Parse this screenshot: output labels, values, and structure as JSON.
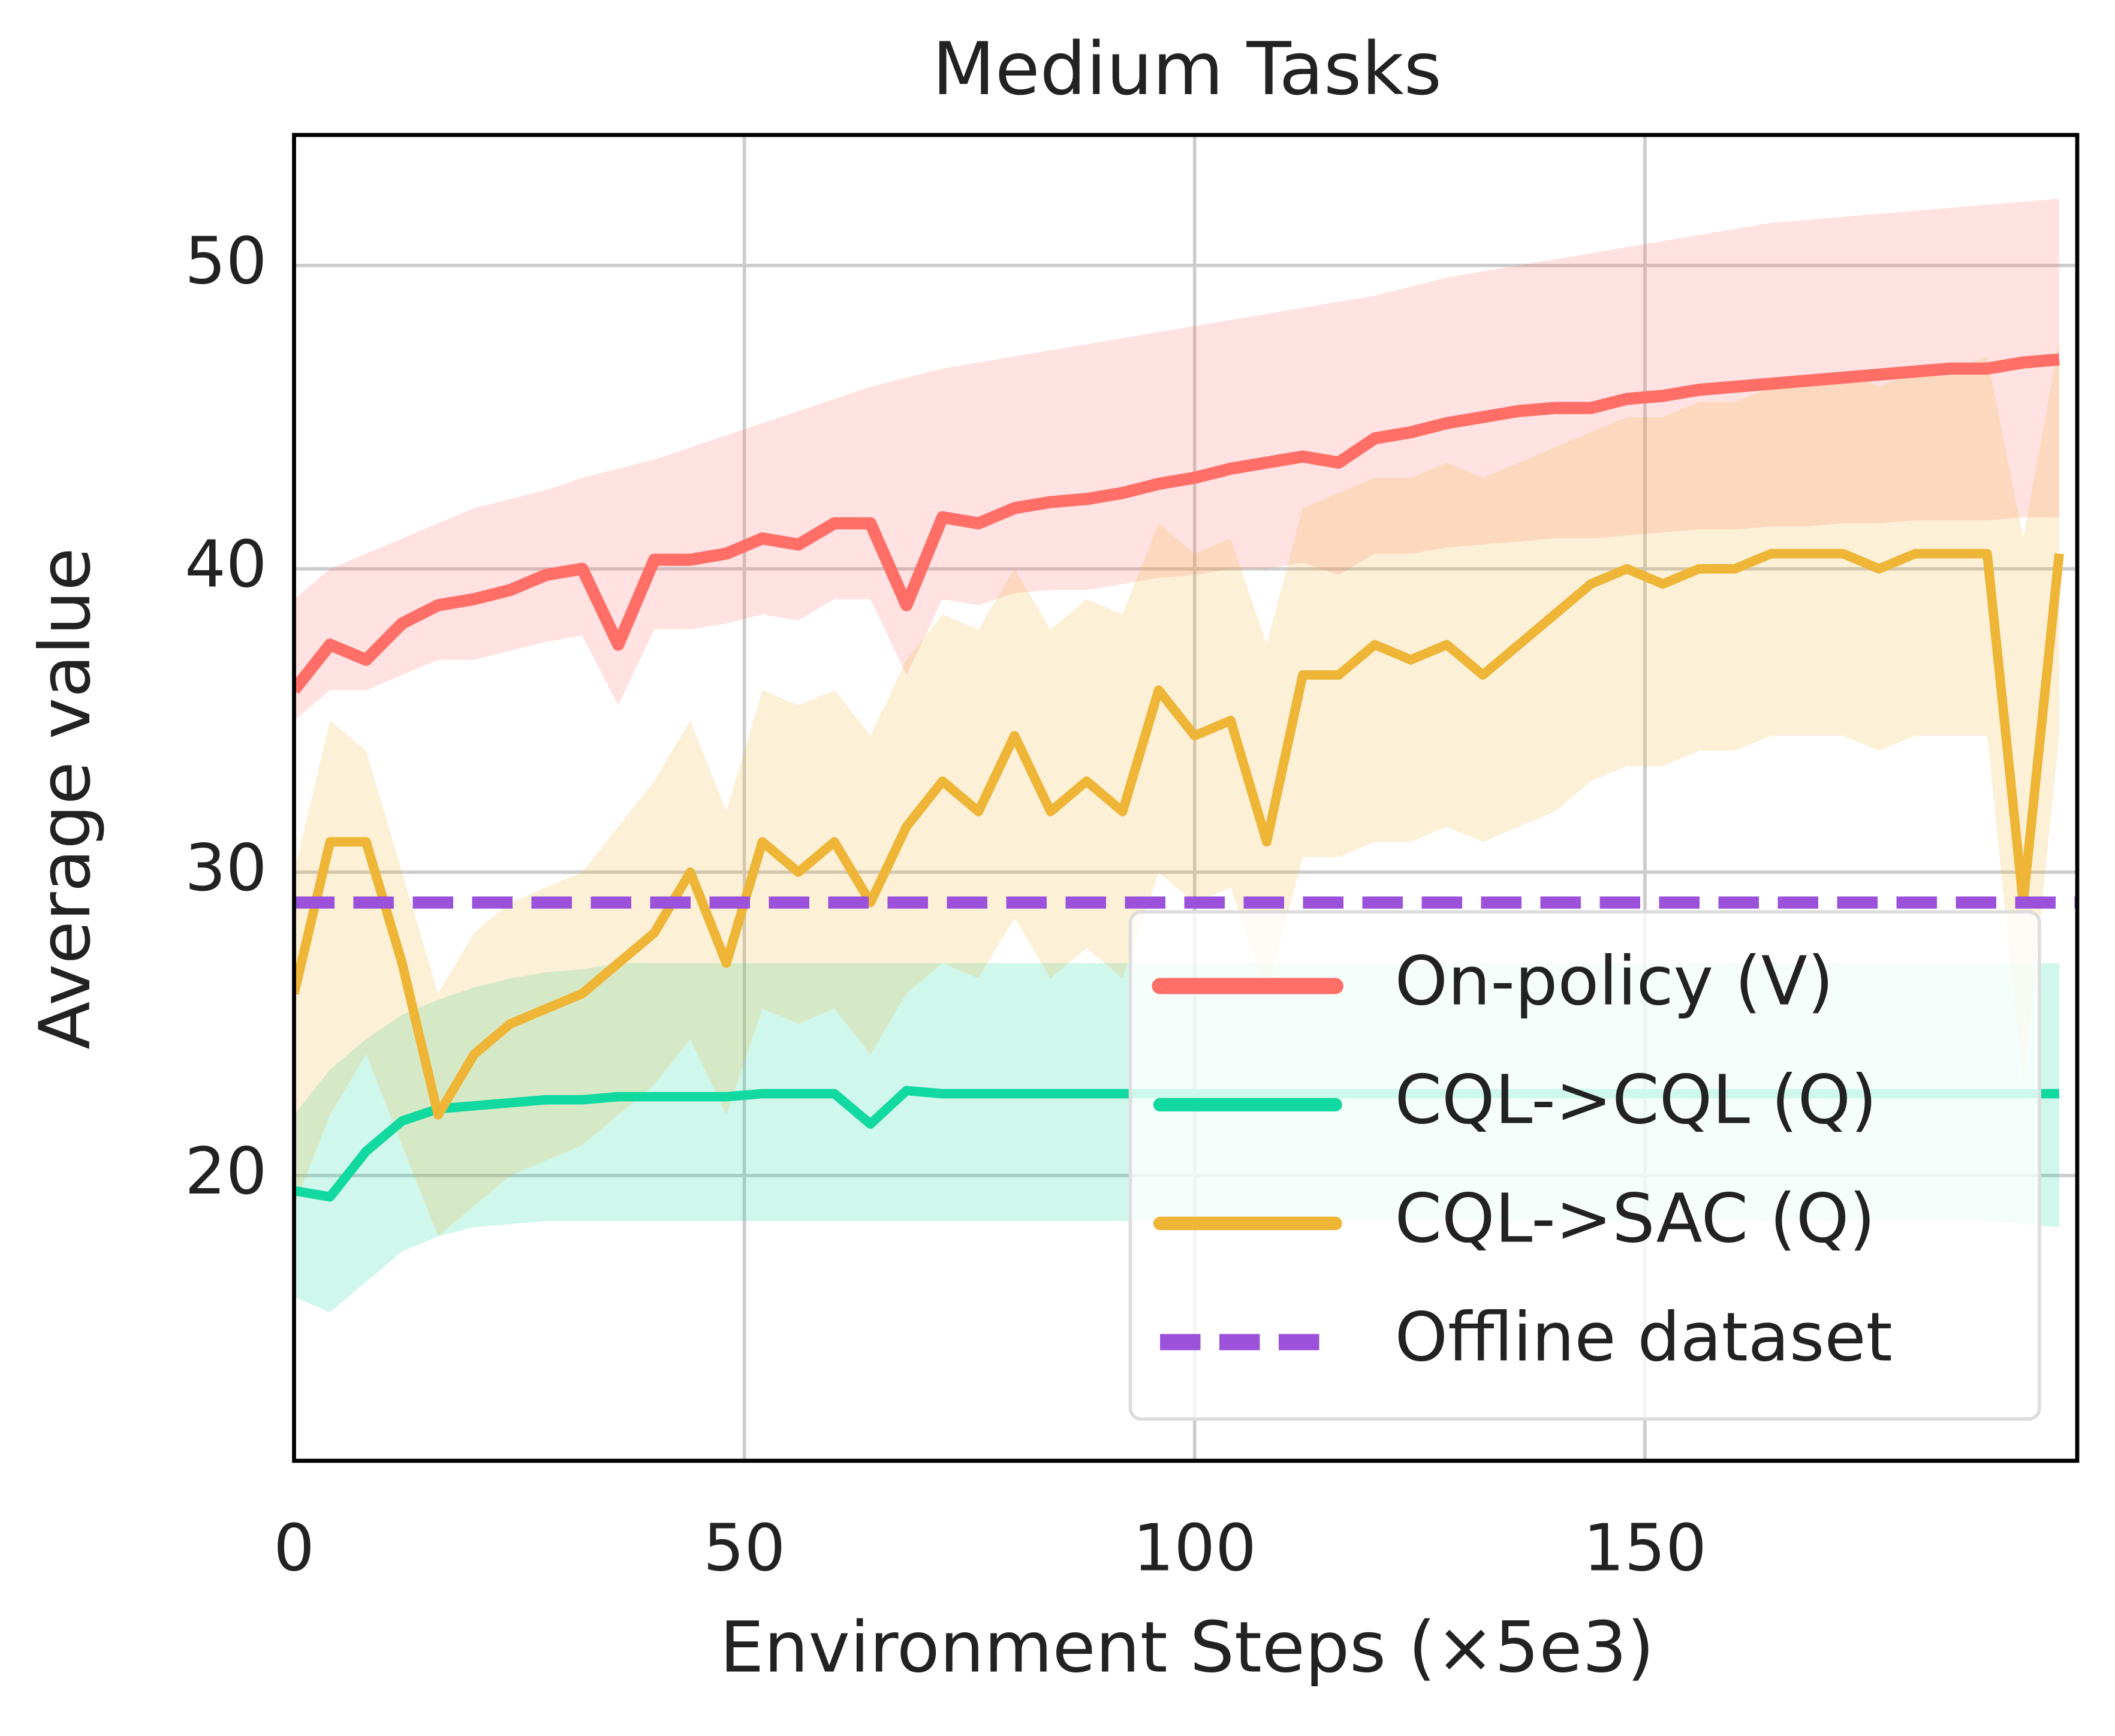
{
  "chart_data": {
    "type": "line",
    "title": "Medium Tasks",
    "x_label": "Environment Steps (×5e3)",
    "y_label": "Average value",
    "x": [
      0,
      4,
      8,
      12,
      16,
      20,
      24,
      28,
      32,
      36,
      40,
      44,
      48,
      52,
      56,
      60,
      64,
      68,
      72,
      76,
      80,
      84,
      88,
      92,
      96,
      100,
      104,
      108,
      112,
      116,
      120,
      124,
      128,
      132,
      136,
      140,
      144,
      148,
      152,
      156,
      160,
      164,
      168,
      172,
      176,
      180,
      184,
      188,
      192,
      196
    ],
    "series": [
      {
        "name": "On-policy (V)",
        "color": "#ff6e67",
        "values": [
          36,
          37.5,
          37,
          38.2,
          38.8,
          39,
          39.3,
          39.8,
          40,
          37.5,
          40.3,
          40.3,
          40.5,
          41,
          40.8,
          41.5,
          41.5,
          38.8,
          41.7,
          41.5,
          42,
          42.2,
          42.3,
          42.5,
          42.8,
          43,
          43.3,
          43.5,
          43.7,
          43.5,
          44.3,
          44.5,
          44.8,
          45,
          45.2,
          45.3,
          45.3,
          45.6,
          45.7,
          45.9,
          46,
          46.1,
          46.2,
          46.3,
          46.4,
          46.5,
          46.6,
          46.6,
          46.8,
          46.9
        ],
        "lower": [
          35,
          36,
          36,
          36.5,
          37,
          37,
          37.3,
          37.6,
          37.8,
          35.5,
          38,
          38,
          38.2,
          38.5,
          38.3,
          39,
          39,
          36.5,
          39,
          38.8,
          39.2,
          39.3,
          39.3,
          39.5,
          39.7,
          39.8,
          40,
          40,
          40.2,
          39.8,
          40.5,
          40.5,
          40.7,
          40.8,
          40.9,
          41,
          41,
          41.1,
          41.2,
          41.3,
          41.3,
          41.4,
          41.4,
          41.5,
          41.5,
          41.6,
          41.6,
          41.6,
          41.7,
          41.7
        ],
        "upper": [
          39,
          40,
          40.5,
          41,
          41.5,
          42,
          42.3,
          42.6,
          43,
          43.3,
          43.6,
          44,
          44.4,
          44.8,
          45.2,
          45.6,
          46,
          46.3,
          46.6,
          46.8,
          47,
          47.2,
          47.4,
          47.6,
          47.8,
          48,
          48.2,
          48.4,
          48.6,
          48.8,
          49,
          49.3,
          49.6,
          49.8,
          50,
          50.2,
          50.4,
          50.6,
          50.8,
          51,
          51.2,
          51.4,
          51.5,
          51.6,
          51.7,
          51.8,
          51.9,
          52,
          52.1,
          52.2
        ]
      },
      {
        "name": "CQL->CQL (Q)",
        "color": "#12d9a0",
        "values": [
          19.5,
          19.3,
          20.8,
          21.8,
          22.2,
          22.3,
          22.4,
          22.5,
          22.5,
          22.6,
          22.6,
          22.6,
          22.6,
          22.7,
          22.7,
          22.7,
          21.7,
          22.8,
          22.7,
          22.7,
          22.7,
          22.7,
          22.7,
          22.7,
          22.7,
          22.7,
          22.7,
          22.7,
          22.7,
          22.7,
          22.7,
          22.7,
          22.7,
          22.7,
          22.7,
          22.7,
          22.7,
          22.7,
          22.7,
          22.7,
          22.7,
          22.7,
          22.7,
          22.7,
          22.7,
          22.7,
          22.7,
          22.7,
          22.7,
          22.7
        ],
        "lower": [
          16,
          15.5,
          16.5,
          17.5,
          18,
          18.3,
          18.4,
          18.5,
          18.5,
          18.5,
          18.5,
          18.5,
          18.5,
          18.5,
          18.5,
          18.5,
          18.5,
          18.5,
          18.5,
          18.5,
          18.5,
          18.5,
          18.5,
          18.5,
          18.5,
          18.5,
          18.5,
          18.5,
          18.5,
          18.5,
          18.5,
          18.5,
          18.5,
          18.5,
          18.5,
          18.5,
          18.5,
          18.5,
          18.5,
          18.5,
          18.5,
          18.5,
          18.5,
          18.5,
          18.5,
          18.5,
          18.5,
          18.5,
          18.4,
          18.3
        ],
        "upper": [
          22,
          23.5,
          24.5,
          25.3,
          25.8,
          26.2,
          26.5,
          26.7,
          26.8,
          27,
          27,
          27,
          27,
          27,
          27,
          27,
          27,
          27,
          27,
          27,
          27,
          27,
          27,
          27,
          27,
          27,
          27,
          27,
          27,
          27,
          27,
          27,
          27,
          27,
          27,
          27,
          27,
          27,
          27,
          27,
          27,
          27,
          27,
          27,
          27,
          27,
          27,
          27,
          27,
          27
        ]
      },
      {
        "name": "CQL->SAC (Q)",
        "color": "#eeb536",
        "values": [
          26,
          31,
          31,
          27,
          22,
          24,
          25,
          25.5,
          26,
          27,
          28,
          30,
          27,
          31,
          30,
          31,
          29,
          31.5,
          33,
          32,
          34.5,
          32,
          33,
          32,
          36,
          34.5,
          35,
          31,
          36.5,
          36.5,
          37.5,
          37,
          37.5,
          36.5,
          37.5,
          38.5,
          39.5,
          40,
          39.5,
          40,
          40,
          40.5,
          40.5,
          40.5,
          40,
          40.5,
          40.5,
          40.5,
          29,
          40.5
        ],
        "lower": [
          19,
          22,
          24,
          21,
          18,
          19,
          20,
          20.5,
          21,
          22,
          23,
          24.5,
          22,
          25.5,
          25,
          25.5,
          24,
          26,
          27,
          26.5,
          28.5,
          26.5,
          27.5,
          26.5,
          30,
          29,
          29.5,
          26,
          30.5,
          30.5,
          31,
          31,
          31.5,
          31,
          31.5,
          32,
          33,
          33.5,
          33.5,
          34,
          34,
          34.5,
          34.5,
          34.5,
          34,
          34.5,
          34.5,
          34.5,
          23,
          34.5
        ],
        "upper": [
          30,
          35,
          34,
          30,
          26,
          28,
          29,
          29.5,
          30,
          31.5,
          33,
          35,
          32,
          36,
          35.5,
          36,
          34.5,
          37,
          38.5,
          38,
          40,
          38,
          39,
          38.5,
          41.5,
          40.5,
          41,
          37.5,
          42,
          42.5,
          43,
          43,
          43.5,
          43,
          43.5,
          44,
          44.5,
          45,
          45,
          45.5,
          45.5,
          46,
          46,
          46.5,
          46,
          46.5,
          46.5,
          47,
          41,
          47.5
        ]
      }
    ],
    "hline": {
      "name": "Offline dataset",
      "value": 29,
      "color": "#9b51d9",
      "dashed": true
    },
    "xlim": [
      0,
      198
    ],
    "xticks": [
      0,
      50,
      100,
      150
    ],
    "ylim": [
      10.6,
      54.3
    ],
    "yticks": [
      20,
      30,
      40,
      50
    ],
    "grid": true,
    "legend": "lower right"
  }
}
